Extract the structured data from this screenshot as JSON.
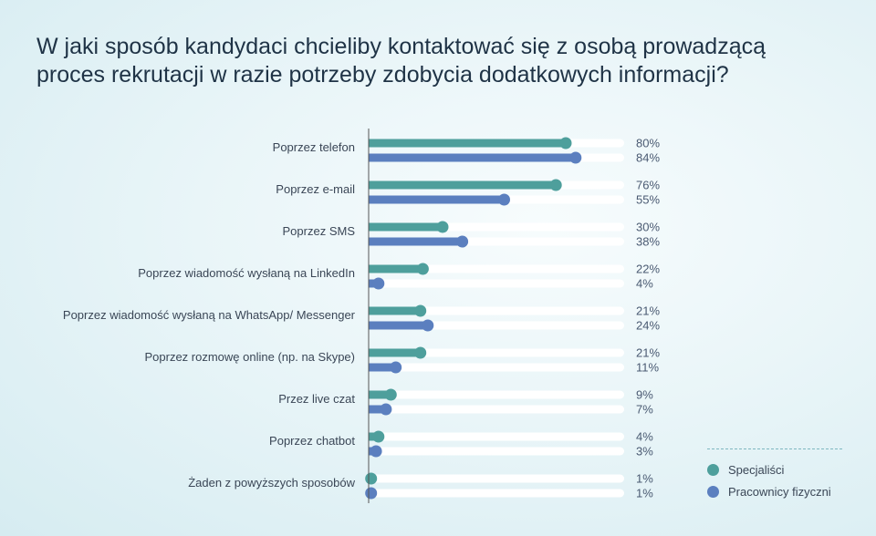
{
  "title": "W jaki sposób kandydaci chcieliby kontaktować się z osobą prowadzącą proces rekrutacji w razie potrzeby zdobycia dodatkowych informacji?",
  "legend": {
    "series1": "Specjaliści",
    "series2": "Pracownicy fizyczni"
  },
  "colors": {
    "series1": "#4e9f9c",
    "series2": "#5b7fbf",
    "track": "#ffffff",
    "axis": "#555555"
  },
  "chart_data": {
    "type": "bar",
    "orientation": "horizontal",
    "categories": [
      "Poprzez telefon",
      "Poprzez e-mail",
      "Poprzez SMS",
      "Poprzez wiadomość wysłaną na LinkedIn",
      "Poprzez wiadomość wysłaną na WhatsApp/ Messenger",
      "Poprzez rozmowę online (np. na Skype)",
      "Przez live czat",
      "Poprzez chatbot",
      "Żaden z powyższych sposobów"
    ],
    "series": [
      {
        "name": "Specjaliści",
        "values": [
          80,
          76,
          30,
          22,
          21,
          21,
          9,
          4,
          1
        ],
        "labels": [
          "80%",
          "76%",
          "30%",
          "22%",
          "21%",
          "21%",
          "9%",
          "4%",
          "1%"
        ]
      },
      {
        "name": "Pracownicy fizyczni",
        "values": [
          84,
          55,
          38,
          4,
          24,
          11,
          7,
          3,
          1
        ],
        "labels": [
          "84%",
          "55%",
          "38%",
          "4%",
          "24%",
          "11%",
          "7%",
          "3%",
          "1%"
        ]
      }
    ],
    "xlim": [
      0,
      100
    ],
    "unit": "%",
    "legend_position": "bottom-right",
    "grid": false
  }
}
